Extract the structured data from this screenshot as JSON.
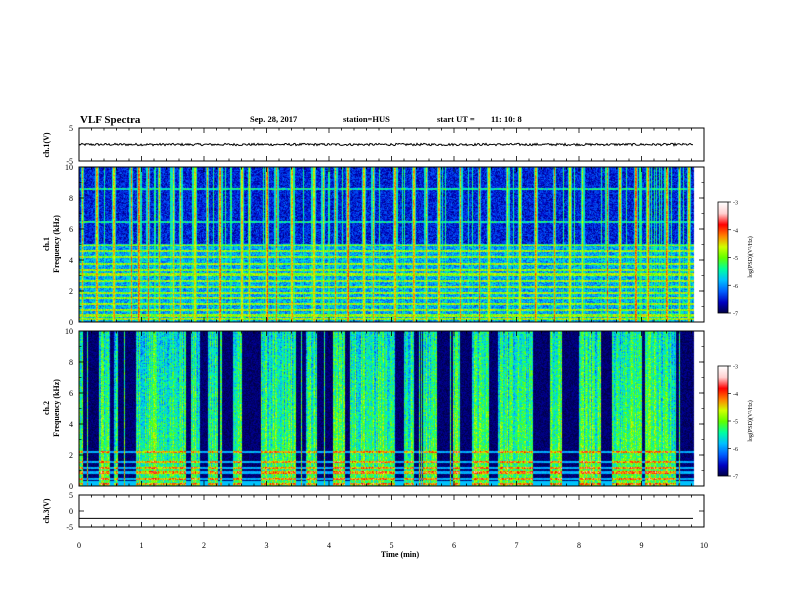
{
  "header": {
    "title": "VLF Spectra",
    "date": "Sep. 28, 2017",
    "station": "station=HUS",
    "start_label": "start  UT  =",
    "start_time": "11: 10: 8"
  },
  "chart_data": [
    {
      "type": "line",
      "panel": "ch1-waveform",
      "ylabel": "ch.1(V)",
      "ylim": [
        -5,
        5
      ],
      "yticks": [
        5,
        -5
      ],
      "x_range_min": [
        0,
        9.83
      ],
      "mean": 0,
      "amplitude": 0.35,
      "color": "#000000"
    },
    {
      "type": "heatmap",
      "panel": "ch1-spectrogram",
      "ylabel": "ch.1\nFrequency (kHz)",
      "ylim": [
        0,
        10
      ],
      "yticks": [
        0,
        2,
        4,
        6,
        8,
        10
      ],
      "x_range_min": [
        0,
        9.83
      ],
      "colorbar": {
        "label": "log(PSD)(V²/Hz)",
        "range": [
          -7,
          -3
        ],
        "ticks": [
          -3,
          -4,
          -5,
          -6,
          -7
        ]
      },
      "background_level": -6.6,
      "band_edge_khz": 5.0,
      "lines_khz": [
        0.2,
        0.45,
        0.8,
        1.2,
        1.6,
        1.9,
        2.3,
        2.7,
        3.1,
        3.4,
        3.8,
        4.2,
        4.6,
        5.0,
        6.5,
        8.6
      ],
      "bursts_min": [
        0.05,
        0.28,
        0.55,
        0.83,
        0.95,
        1.1,
        1.28,
        1.5,
        1.62,
        1.85,
        2.05,
        2.25,
        2.6,
        2.72,
        3.0,
        3.15,
        3.4,
        3.75,
        3.9,
        4.1,
        4.3,
        4.55,
        4.7,
        5.05,
        5.35,
        5.55,
        5.75,
        6.1,
        6.4,
        6.55,
        6.85,
        7.05,
        7.3,
        7.6,
        7.85,
        8.05,
        8.45,
        8.65,
        8.9,
        9.1,
        9.4,
        9.6,
        9.75
      ]
    },
    {
      "type": "heatmap",
      "panel": "ch2-spectrogram",
      "ylabel": "ch.2\nFrequency (kHz)",
      "ylim": [
        0,
        10
      ],
      "yticks": [
        0,
        2,
        4,
        6,
        8,
        10
      ],
      "x_range_min": [
        0,
        9.83
      ],
      "colorbar": {
        "label": "log(PSD)(V²/Hz)",
        "range": [
          -7,
          -3
        ],
        "ticks": [
          -3,
          -4,
          -5,
          -6,
          -7
        ]
      },
      "background_level": -7.0,
      "lines_khz": [
        0.15,
        0.5,
        0.9,
        1.2,
        1.6,
        2.2
      ],
      "active_segments_min": [
        [
          0.0,
          0.05
        ],
        [
          0.32,
          0.48
        ],
        [
          0.55,
          0.62
        ],
        [
          0.9,
          1.7
        ],
        [
          1.78,
          1.92
        ],
        [
          2.05,
          2.22
        ],
        [
          2.45,
          2.6
        ],
        [
          2.9,
          3.45
        ],
        [
          3.62,
          3.8
        ],
        [
          4.05,
          4.25
        ],
        [
          4.35,
          5.05
        ],
        [
          5.2,
          5.35
        ],
        [
          5.5,
          5.72
        ],
        [
          5.98,
          6.08
        ],
        [
          6.28,
          6.55
        ],
        [
          6.7,
          7.25
        ],
        [
          7.55,
          7.72
        ],
        [
          8.0,
          8.35
        ],
        [
          8.52,
          8.98
        ],
        [
          9.05,
          9.55
        ]
      ]
    },
    {
      "type": "line",
      "panel": "ch3-waveform",
      "ylabel": "ch.3(V)",
      "ylim": [
        -5,
        5
      ],
      "yticks": [
        5,
        0,
        -5
      ],
      "x_range_min": [
        0,
        9.83
      ],
      "mean": -2.3,
      "amplitude": 0,
      "color": "#000000"
    }
  ],
  "x_axis": {
    "label": "Time  (min)",
    "range": [
      0,
      10
    ],
    "ticks": [
      0,
      1,
      2,
      3,
      4,
      5,
      6,
      7,
      8,
      9,
      10
    ]
  },
  "colors": {
    "spectrogram_background": "#000060",
    "colormap": [
      "#000040",
      "#0000c0",
      "#0060ff",
      "#00c0ff",
      "#00ffa0",
      "#60ff00",
      "#d0ff00",
      "#ff8000",
      "#ff0000",
      "#ffd0d0",
      "#ffffff"
    ]
  }
}
